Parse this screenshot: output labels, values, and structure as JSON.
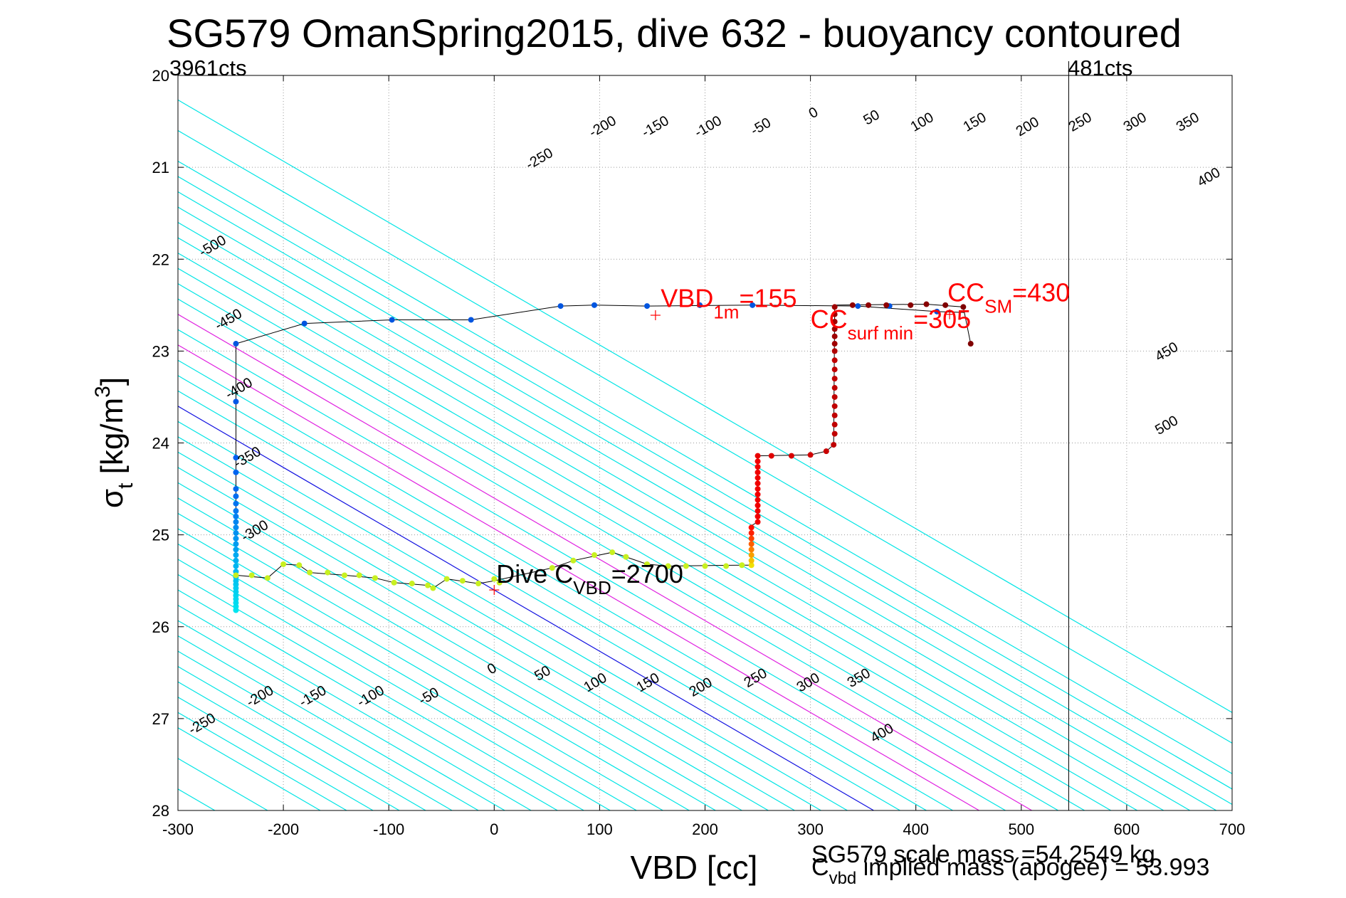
{
  "chart_data": {
    "type": "scatter",
    "title": "SG579 OmanSpring2015, dive 632 - buoyancy contoured",
    "xlabel": "VBD [cc]",
    "ylabel_main": "σ",
    "ylabel_sub": "t",
    "ylabel_rest": " [kg/m",
    "ylabel_sup": "3",
    "ylabel_end": "]",
    "xlim": [
      -300,
      700
    ],
    "ylim": [
      20,
      28
    ],
    "y_reversed": true,
    "grid": "dotted",
    "xticks": [
      -300,
      -200,
      -100,
      0,
      100,
      200,
      300,
      400,
      500,
      600,
      700
    ],
    "yticks": [
      20,
      21,
      22,
      23,
      24,
      25,
      26,
      27,
      28
    ],
    "corner_labels": {
      "left": "3961cts",
      "right": "481cts"
    },
    "vbd_limit_line_x": 545,
    "buoyancy_contours": {
      "slope_cc_per_sigma": 150,
      "values": [
        -500,
        -450,
        -400,
        -350,
        -300,
        -250,
        -200,
        -150,
        -100,
        -50,
        0,
        50,
        100,
        150,
        200,
        250,
        300,
        350,
        400,
        450,
        500
      ],
      "colors": {
        "default": "#00e5e5",
        "zero": "#1010e0",
        "bounds": "#e020e0"
      },
      "bound_values": [
        100,
        150
      ],
      "upper_labels": [
        {
          "text": "-500",
          "x": -265,
          "y": 21.9
        },
        {
          "text": "-450",
          "x": -250,
          "y": 22.7
        },
        {
          "text": "-400",
          "x": -240,
          "y": 23.45
        },
        {
          "text": "-350",
          "x": -232,
          "y": 24.2
        },
        {
          "text": "-300",
          "x": -225,
          "y": 25.0
        },
        {
          "text": "-250",
          "x": 45,
          "y": 20.95
        },
        {
          "text": "-200",
          "x": 105,
          "y": 20.6
        },
        {
          "text": "-150",
          "x": 155,
          "y": 20.6
        },
        {
          "text": "-100",
          "x": 205,
          "y": 20.6
        },
        {
          "text": "-50",
          "x": 255,
          "y": 20.6
        },
        {
          "text": "0",
          "x": 305,
          "y": 20.45
        },
        {
          "text": "50",
          "x": 360,
          "y": 20.5
        },
        {
          "text": "100",
          "x": 408,
          "y": 20.55
        },
        {
          "text": "150",
          "x": 458,
          "y": 20.55
        },
        {
          "text": "200",
          "x": 508,
          "y": 20.6
        },
        {
          "text": "250",
          "x": 558,
          "y": 20.55
        },
        {
          "text": "300",
          "x": 610,
          "y": 20.55
        },
        {
          "text": "350",
          "x": 660,
          "y": 20.55
        },
        {
          "text": "400",
          "x": 680,
          "y": 21.15
        },
        {
          "text": "450",
          "x": 640,
          "y": 23.05
        },
        {
          "text": "500",
          "x": 640,
          "y": 23.85
        }
      ],
      "lower_labels": [
        {
          "text": "-250",
          "x": -275,
          "y": 27.1
        },
        {
          "text": "-200",
          "x": -220,
          "y": 26.8
        },
        {
          "text": "-150",
          "x": -170,
          "y": 26.8
        },
        {
          "text": "-100",
          "x": -115,
          "y": 26.8
        },
        {
          "text": "-50",
          "x": -60,
          "y": 26.8
        },
        {
          "text": "0",
          "x": 0,
          "y": 26.5
        },
        {
          "text": "50",
          "x": 48,
          "y": 26.55
        },
        {
          "text": "100",
          "x": 98,
          "y": 26.65
        },
        {
          "text": "150",
          "x": 148,
          "y": 26.65
        },
        {
          "text": "200",
          "x": 198,
          "y": 26.7
        },
        {
          "text": "250",
          "x": 250,
          "y": 26.6
        },
        {
          "text": "300",
          "x": 300,
          "y": 26.65
        },
        {
          "text": "350",
          "x": 348,
          "y": 26.6
        },
        {
          "text": "400",
          "x": 370,
          "y": 27.2
        }
      ]
    },
    "series": [
      {
        "color_scale": "cyan-blue-yellow-red-darkred",
        "points": [
          [
            -245,
            25.82,
            "#00e5f0"
          ],
          [
            -245,
            25.78,
            "#00e0f0"
          ],
          [
            -245,
            25.74,
            "#00dcf0"
          ],
          [
            -245,
            25.7,
            "#00d8f0"
          ],
          [
            -245,
            25.66,
            "#00d4f0"
          ],
          [
            -245,
            25.62,
            "#00d0f0"
          ],
          [
            -245,
            25.58,
            "#00ccf0"
          ],
          [
            -245,
            25.54,
            "#00c8f0"
          ],
          [
            -245,
            25.5,
            "#00c4f0"
          ],
          [
            -245,
            25.46,
            "#00c0f0"
          ],
          [
            -245,
            25.4,
            "#00bbf0"
          ],
          [
            -245,
            25.34,
            "#00b5f0"
          ],
          [
            -245,
            25.28,
            "#00aff0"
          ],
          [
            -245,
            25.22,
            "#00a9f0"
          ],
          [
            -245,
            25.16,
            "#00a3f0"
          ],
          [
            -245,
            25.1,
            "#009df0"
          ],
          [
            -245,
            25.04,
            "#0097f0"
          ],
          [
            -245,
            24.98,
            "#0091f0"
          ],
          [
            -245,
            24.92,
            "#008bf0"
          ],
          [
            -245,
            24.86,
            "#0085f0"
          ],
          [
            -245,
            24.8,
            "#007ff0"
          ],
          [
            -245,
            24.74,
            "#0079f0"
          ],
          [
            -245,
            24.66,
            "#0073f0"
          ],
          [
            -245,
            24.58,
            "#006df0"
          ],
          [
            -245,
            24.5,
            "#0068f0"
          ],
          [
            -245,
            24.32,
            "#0064f0"
          ],
          [
            -245,
            24.16,
            "#0060f0"
          ],
          [
            -245,
            23.55,
            "#0058e8"
          ],
          [
            -245,
            22.92,
            "#0055e0"
          ],
          [
            -180,
            22.7,
            "#0055e0"
          ],
          [
            -97,
            22.66,
            "#0055e0"
          ],
          [
            -22,
            22.66,
            "#0055e0"
          ],
          [
            63,
            22.51,
            "#0055e0"
          ],
          [
            95,
            22.5,
            "#0055e0"
          ],
          [
            145,
            22.51,
            "#0055e0"
          ],
          [
            195,
            22.5,
            "#0055e0"
          ],
          [
            245,
            22.5,
            "#0055e0"
          ],
          [
            345,
            22.51,
            "#0055e0"
          ],
          [
            375,
            22.51,
            "#0055e0"
          ],
          [
            420,
            22.57,
            "#0055e0"
          ],
          [
            -245,
            25.44,
            "#c8f020"
          ],
          [
            -230,
            25.44,
            "#c8f020"
          ],
          [
            -215,
            25.47,
            "#c8f020"
          ],
          [
            -200,
            25.32,
            "#c8f020"
          ],
          [
            -185,
            25.33,
            "#c8f020"
          ],
          [
            -175,
            25.41,
            "#c8f020"
          ],
          [
            -158,
            25.41,
            "#c8f020"
          ],
          [
            -142,
            25.44,
            "#c8f020"
          ],
          [
            -128,
            25.44,
            "#c8f020"
          ],
          [
            -113,
            25.47,
            "#c8f020"
          ],
          [
            -95,
            25.52,
            "#c8f020"
          ],
          [
            -78,
            25.53,
            "#c8f020"
          ],
          [
            -63,
            25.55,
            "#c8f020"
          ],
          [
            -58,
            25.58,
            "#c8f020"
          ],
          [
            -45,
            25.48,
            "#c8f020"
          ],
          [
            -30,
            25.5,
            "#c8f020"
          ],
          [
            -15,
            25.53,
            "#c8f020"
          ],
          [
            0,
            25.48,
            "#c8f020"
          ],
          [
            5,
            25.52,
            "#c8f020"
          ],
          [
            55,
            25.36,
            "#c8f020"
          ],
          [
            75,
            25.28,
            "#c8f020"
          ],
          [
            95,
            25.22,
            "#c8f020"
          ],
          [
            112,
            25.19,
            "#c8f020"
          ],
          [
            125,
            25.24,
            "#c8f020"
          ],
          [
            145,
            25.32,
            "#c8f020"
          ],
          [
            165,
            25.34,
            "#c8f020"
          ],
          [
            182,
            25.34,
            "#c8f020"
          ],
          [
            200,
            25.34,
            "#c8f020"
          ],
          [
            220,
            25.34,
            "#c8f020"
          ],
          [
            235,
            25.33,
            "#c8f020"
          ],
          [
            244,
            25.33,
            "#f0e000"
          ],
          [
            244,
            25.28,
            "#f5c000"
          ],
          [
            244,
            25.22,
            "#f8a000"
          ],
          [
            244,
            25.16,
            "#fa8000"
          ],
          [
            244,
            25.1,
            "#fc6000"
          ],
          [
            244,
            25.04,
            "#fd4000"
          ],
          [
            244,
            24.98,
            "#fe2000"
          ],
          [
            244,
            24.92,
            "#ff1000"
          ],
          [
            250,
            24.86,
            "#f00000"
          ],
          [
            250,
            24.8,
            "#f00000"
          ],
          [
            250,
            24.74,
            "#f00000"
          ],
          [
            250,
            24.68,
            "#f00000"
          ],
          [
            250,
            24.62,
            "#f00000"
          ],
          [
            250,
            24.56,
            "#f00000"
          ],
          [
            250,
            24.5,
            "#f00000"
          ],
          [
            250,
            24.44,
            "#f00000"
          ],
          [
            250,
            24.38,
            "#f00000"
          ],
          [
            250,
            24.32,
            "#f00000"
          ],
          [
            250,
            24.26,
            "#f00000"
          ],
          [
            250,
            24.2,
            "#f00000"
          ],
          [
            250,
            24.14,
            "#e80000"
          ],
          [
            263,
            24.14,
            "#e00000"
          ],
          [
            282,
            24.14,
            "#d80000"
          ],
          [
            300,
            24.13,
            "#d00000"
          ],
          [
            315,
            24.09,
            "#c80000"
          ],
          [
            322,
            24.02,
            "#c00000"
          ],
          [
            323,
            23.9,
            "#c00000"
          ],
          [
            323,
            23.8,
            "#c00000"
          ],
          [
            323,
            23.7,
            "#c00000"
          ],
          [
            323,
            23.6,
            "#c00000"
          ],
          [
            323,
            23.5,
            "#c00000"
          ],
          [
            323,
            23.4,
            "#c00000"
          ],
          [
            323,
            23.3,
            "#c00000"
          ],
          [
            323,
            23.2,
            "#c00000"
          ],
          [
            323,
            23.1,
            "#c00000"
          ],
          [
            323,
            23.0,
            "#b00000"
          ],
          [
            323,
            22.92,
            "#a00000"
          ],
          [
            323,
            22.84,
            "#a00000"
          ],
          [
            323,
            22.76,
            "#a00000"
          ],
          [
            323,
            22.68,
            "#a00000"
          ],
          [
            323,
            22.6,
            "#a00000"
          ],
          [
            323,
            22.52,
            "#a00000"
          ],
          [
            340,
            22.5,
            "#900000"
          ],
          [
            355,
            22.5,
            "#900000"
          ],
          [
            372,
            22.5,
            "#900000"
          ],
          [
            395,
            22.5,
            "#880000"
          ],
          [
            410,
            22.49,
            "#880000"
          ],
          [
            428,
            22.5,
            "#800000"
          ],
          [
            445,
            22.52,
            "#800000"
          ],
          [
            452,
            22.92,
            "#800000"
          ]
        ],
        "paths": [
          [
            [
              -245,
              25.84
            ],
            [
              -245,
              22.92
            ],
            [
              -180,
              22.7
            ],
            [
              -97,
              22.66
            ],
            [
              -22,
              22.66
            ],
            [
              63,
              22.51
            ],
            [
              95,
              22.5
            ],
            [
              145,
              22.51
            ],
            [
              245,
              22.5
            ],
            [
              345,
              22.51
            ],
            [
              420,
              22.57
            ],
            [
              446,
              22.58
            ]
          ],
          [
            [
              -245,
              25.44
            ],
            [
              -215,
              25.47
            ],
            [
              -200,
              25.32
            ],
            [
              -185,
              25.33
            ],
            [
              -175,
              25.41
            ],
            [
              -142,
              25.44
            ],
            [
              -113,
              25.47
            ],
            [
              -95,
              25.52
            ],
            [
              -63,
              25.55
            ],
            [
              -58,
              25.58
            ],
            [
              -45,
              25.48
            ],
            [
              -15,
              25.53
            ],
            [
              0,
              25.5
            ],
            [
              55,
              25.36
            ],
            [
              75,
              25.28
            ],
            [
              112,
              25.19
            ],
            [
              125,
              25.24
            ],
            [
              145,
              25.32
            ],
            [
              165,
              25.34
            ],
            [
              235,
              25.33
            ],
            [
              244,
              25.33
            ],
            [
              244,
              24.9
            ],
            [
              250,
              24.86
            ],
            [
              250,
              24.14
            ],
            [
              300,
              24.13
            ],
            [
              315,
              24.09
            ],
            [
              322,
              24.02
            ],
            [
              323,
              22.5
            ],
            [
              410,
              22.49
            ],
            [
              445,
              22.52
            ],
            [
              452,
              22.92
            ]
          ]
        ]
      }
    ],
    "markers": [
      {
        "x": 153,
        "y": 22.61,
        "color": "#ff0000"
      },
      {
        "x": 432,
        "y": 22.6,
        "color": "#ff0000"
      },
      {
        "x": 0,
        "y": 25.6,
        "color": "#ff0000"
      }
    ],
    "annotations": [
      {
        "x": 158,
        "y": 22.52,
        "color": "#ff0000",
        "main": "VBD",
        "sub": "1m",
        "rest": "=155"
      },
      {
        "x": 300,
        "y": 22.75,
        "color": "#ff0000",
        "main": "CC",
        "sub": "surf min",
        "rest": "=305"
      },
      {
        "x": 430,
        "y": 22.46,
        "color": "#ff0000",
        "main": "CC",
        "sub": "SM",
        "rest": "=430"
      },
      {
        "x": 2,
        "y": 25.52,
        "color": "#000000",
        "main": "Dive C",
        "sub": "VBD",
        "rest": "=2700"
      }
    ],
    "footer": {
      "line1": "SG579 scale mass =54.2549 kg",
      "line2_main": "C",
      "line2_sub": "vbd",
      "line2_rest": " implied mass (apogee) = 53.993"
    }
  }
}
